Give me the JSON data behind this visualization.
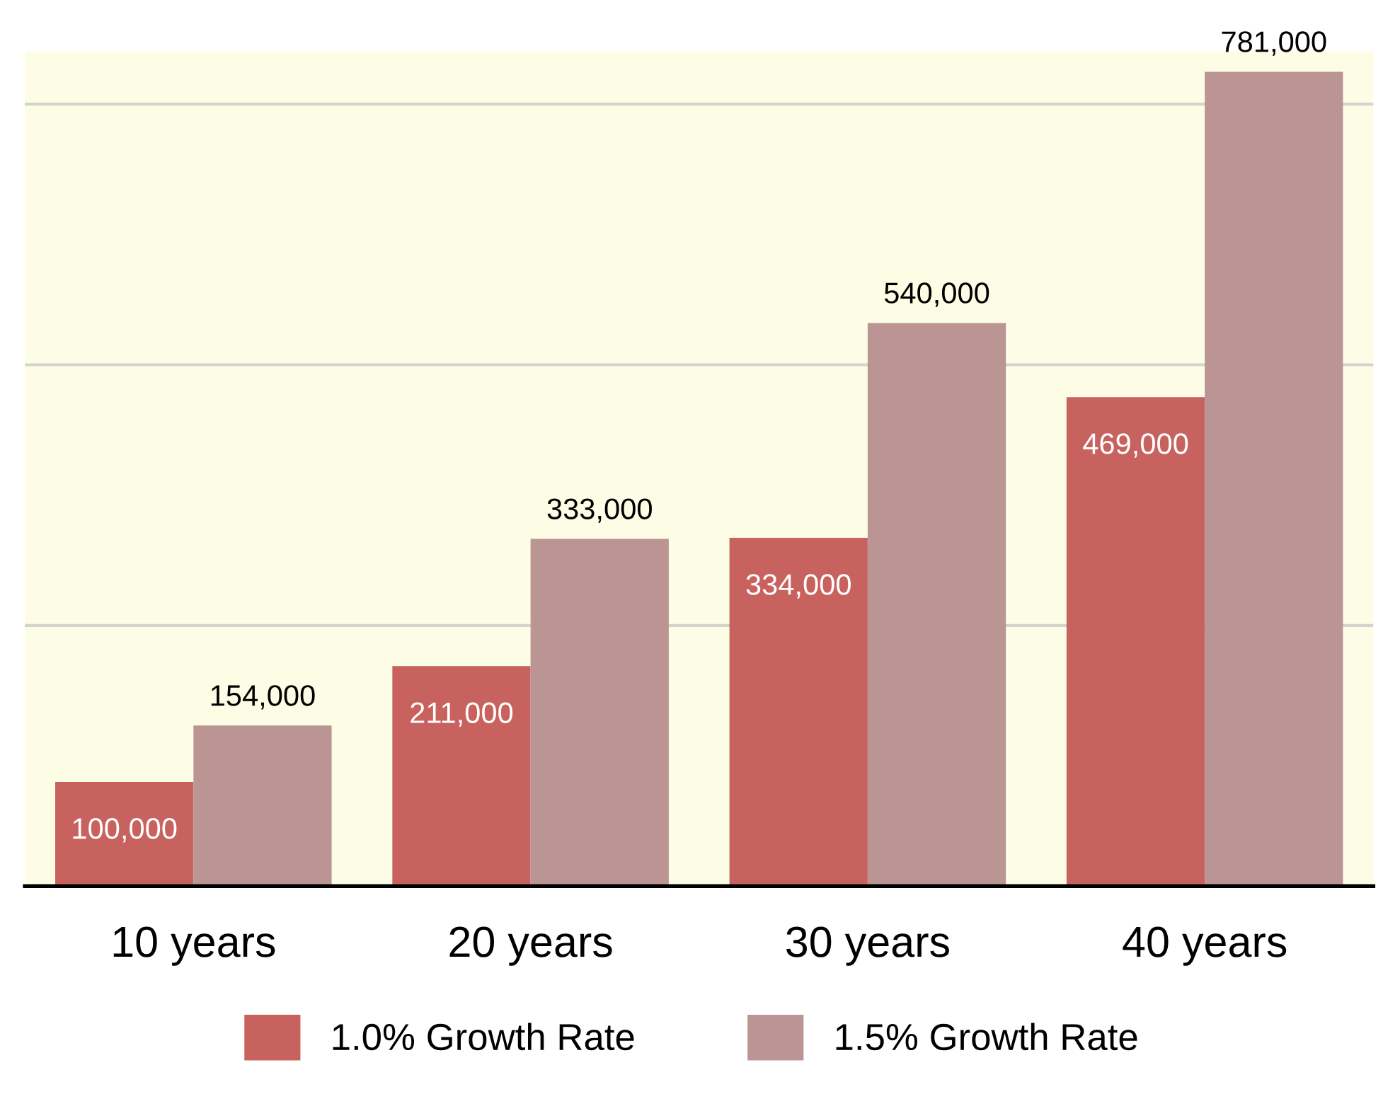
{
  "chart_data": {
    "type": "bar",
    "categories": [
      "10 years",
      "20 years",
      "30 years",
      "40 years"
    ],
    "series": [
      {
        "name": "1.0% Growth Rate",
        "color": "#c8625f",
        "values": [
          100000,
          211000,
          334000,
          469000
        ],
        "value_labels": [
          "100,000",
          "211,000",
          "334,000",
          "469,000"
        ]
      },
      {
        "name": "1.5% Growth Rate",
        "color": "#bb9494",
        "values": [
          154000,
          333000,
          540000,
          781000
        ],
        "value_labels": [
          "154,000",
          "333,000",
          "540,000",
          "781,000"
        ]
      }
    ],
    "grid": "y",
    "legend": "bottom"
  }
}
